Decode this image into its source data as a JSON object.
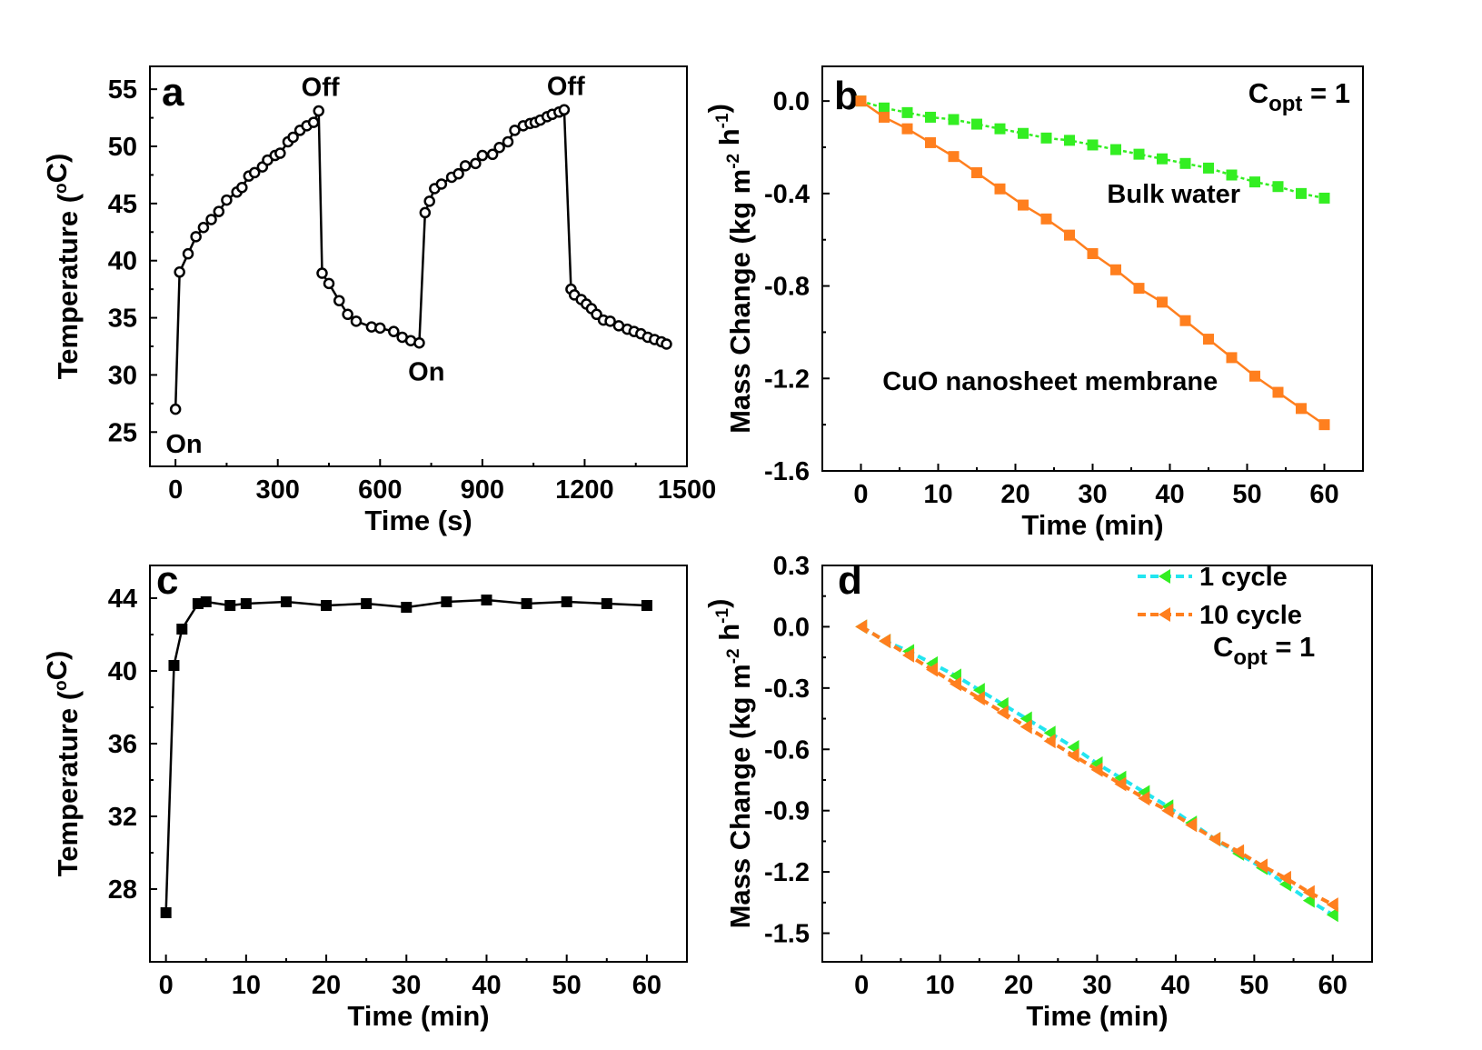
{
  "chart_data": [
    {
      "panel": "a",
      "type": "line",
      "xlabel": "Time (s)",
      "ylabel": "Temperature (°C)",
      "ylabel_parts": [
        "Temperature (",
        "o",
        "C)"
      ],
      "xlim": [
        -75,
        1500
      ],
      "ylim": [
        22,
        57
      ],
      "xticks": [
        0,
        300,
        600,
        900,
        1200,
        1500
      ],
      "yticks": [
        25,
        30,
        35,
        40,
        45,
        50,
        55
      ],
      "annotations": [
        {
          "text": "On",
          "x": 25,
          "y": 23.2
        },
        {
          "text": "Off",
          "x": 425,
          "y": 54.4
        },
        {
          "text": "On",
          "x": 736,
          "y": 29.5
        },
        {
          "text": "Off",
          "x": 1145,
          "y": 54.5
        }
      ],
      "series": [
        {
          "marker": "circle",
          "color": "#000000",
          "x": [
            0,
            12,
            37,
            60,
            82,
            105,
            127,
            150,
            180,
            195,
            215,
            232,
            255,
            270,
            292,
            307,
            330,
            345,
            365,
            385,
            405,
            420,
            430,
            450,
            480,
            505,
            530,
            575,
            600,
            640,
            665,
            690,
            715,
            732,
            745,
            760,
            780,
            810,
            830,
            850,
            880,
            900,
            930,
            950,
            975,
            995,
            1020,
            1040,
            1055,
            1070,
            1090,
            1105,
            1125,
            1140,
            1160,
            1170,
            1190,
            1205,
            1220,
            1235,
            1255,
            1275,
            1300,
            1325,
            1345,
            1365,
            1385,
            1405,
            1425,
            1440
          ],
          "y": [
            27,
            39,
            40.6,
            42.1,
            42.9,
            43.6,
            44.3,
            45.3,
            46,
            46.4,
            47.4,
            47.7,
            48.2,
            48.8,
            49.2,
            49.4,
            50.4,
            50.8,
            51.4,
            51.8,
            52.1,
            53.1,
            38.9,
            38,
            36.5,
            35.3,
            34.7,
            34.2,
            34.1,
            33.8,
            33.3,
            33,
            32.8,
            44.2,
            45.2,
            46.3,
            46.7,
            47.3,
            47.6,
            48.3,
            48.5,
            49.2,
            49.3,
            49.9,
            50.4,
            51.4,
            51.8,
            52,
            52.1,
            52.3,
            52.6,
            52.8,
            53,
            53.2,
            37.5,
            37,
            36.6,
            36.2,
            35.8,
            35.3,
            34.8,
            34.7,
            34.3,
            34,
            33.8,
            33.6,
            33.3,
            33.1,
            32.9,
            32.7
          ]
        }
      ]
    },
    {
      "panel": "b",
      "type": "line",
      "xlabel": "Time (min)",
      "ylabel": "Mass Change (kg m-2 h-1)",
      "ylabel_parts": [
        "Mass Change (kg m",
        "-2",
        " h",
        "-1",
        ")"
      ],
      "xlim": [
        -5,
        65
      ],
      "ylim": [
        -1.6,
        0.15
      ],
      "xticks": [
        0,
        10,
        20,
        30,
        40,
        50,
        60
      ],
      "yticks": [
        0.0,
        -0.4,
        -0.8,
        -1.2,
        -1.6
      ],
      "ytick_labels": [
        "0.0",
        "-0.4",
        "-0.8",
        "-1.2",
        "-1.6"
      ],
      "corner_label": {
        "base": "C",
        "sub": "opt",
        "rest": " = 1"
      },
      "annotations": [
        {
          "text": "Bulk water",
          "x": 40.5,
          "y": -0.44
        },
        {
          "text": "CuO nanosheet membrane",
          "x": 24.5,
          "y": -1.25
        }
      ],
      "series": [
        {
          "name": "Bulk water",
          "marker": "square",
          "color": "#33ee22",
          "dash": "4,3",
          "x": [
            0,
            3,
            6,
            9,
            12,
            15,
            18,
            21,
            24,
            27,
            30,
            33,
            36,
            39,
            42,
            45,
            48,
            51,
            54,
            57,
            60
          ],
          "y": [
            0,
            -0.03,
            -0.05,
            -0.07,
            -0.08,
            -0.1,
            -0.12,
            -0.14,
            -0.16,
            -0.17,
            -0.19,
            -0.21,
            -0.23,
            -0.25,
            -0.27,
            -0.29,
            -0.32,
            -0.35,
            -0.37,
            -0.4,
            -0.42
          ]
        },
        {
          "name": "CuO nanosheet membrane",
          "marker": "square",
          "color": "#ff7f1e",
          "dash": "none",
          "x": [
            0,
            3,
            6,
            9,
            12,
            15,
            18,
            21,
            24,
            27,
            30,
            33,
            36,
            39,
            42,
            45,
            48,
            51,
            54,
            57,
            60
          ],
          "y": [
            0,
            -0.07,
            -0.12,
            -0.18,
            -0.24,
            -0.31,
            -0.38,
            -0.45,
            -0.51,
            -0.58,
            -0.66,
            -0.73,
            -0.81,
            -0.87,
            -0.95,
            -1.03,
            -1.11,
            -1.19,
            -1.26,
            -1.33,
            -1.4
          ]
        }
      ]
    },
    {
      "panel": "c",
      "type": "line",
      "xlabel": "Time (min)",
      "ylabel": "Temperature (°C)",
      "ylabel_parts": [
        "Temperature (",
        "o",
        "C)"
      ],
      "xlim": [
        -2,
        65
      ],
      "ylim": [
        24,
        45.8
      ],
      "xticks": [
        0,
        10,
        20,
        30,
        40,
        50,
        60
      ],
      "yticks": [
        28,
        32,
        36,
        40,
        44
      ],
      "series": [
        {
          "marker": "square",
          "color": "#000000",
          "x": [
            0,
            1,
            2,
            4,
            5,
            8,
            10,
            15,
            20,
            25,
            30,
            35,
            40,
            45,
            50,
            55,
            60
          ],
          "y": [
            26.7,
            40.3,
            42.3,
            43.7,
            43.8,
            43.6,
            43.7,
            43.8,
            43.6,
            43.7,
            43.5,
            43.8,
            43.9,
            43.7,
            43.8,
            43.7,
            43.6
          ]
        }
      ]
    },
    {
      "panel": "d",
      "type": "line",
      "xlabel": "Time (min)",
      "ylabel": "Mass Change (kg m-2 h-1)",
      "ylabel_parts": [
        "Mass Change (kg m",
        "-2",
        " h",
        "-1",
        ")"
      ],
      "xlim": [
        -5,
        65
      ],
      "ylim": [
        -1.64,
        0.3
      ],
      "xticks": [
        0,
        10,
        20,
        30,
        40,
        50,
        60
      ],
      "yticks": [
        0.3,
        0.0,
        -0.3,
        -0.6,
        -0.9,
        -1.2,
        -1.5
      ],
      "ytick_labels": [
        "0.3",
        "0.0",
        "-0.3",
        "-0.6",
        "-0.9",
        "-1.2",
        "-1.5"
      ],
      "corner_label": {
        "base": "C",
        "sub": "opt",
        "rest": " = 1"
      },
      "legend_position": "top-right",
      "series": [
        {
          "name": "1 cycle",
          "marker": "triangle-left",
          "color": "#33ee22",
          "line_color": "#22e5f0",
          "dash": "9,5",
          "x": [
            0,
            3,
            6,
            9,
            12,
            15,
            18,
            21,
            24,
            27,
            30,
            33,
            36,
            39,
            42,
            45,
            48,
            51,
            54,
            57,
            60
          ],
          "y": [
            0,
            -0.07,
            -0.12,
            -0.18,
            -0.24,
            -0.31,
            -0.38,
            -0.45,
            -0.52,
            -0.59,
            -0.67,
            -0.74,
            -0.81,
            -0.88,
            -0.96,
            -1.04,
            -1.11,
            -1.18,
            -1.26,
            -1.34,
            -1.41
          ]
        },
        {
          "name": "10 cycle",
          "marker": "triangle-left",
          "color": "#ff7f1e",
          "line_color": "#ff7f1e",
          "dash": "9,5",
          "x": [
            0,
            3,
            6,
            9,
            12,
            15,
            18,
            21,
            24,
            27,
            30,
            33,
            36,
            39,
            42,
            45,
            48,
            51,
            54,
            57,
            60
          ],
          "y": [
            0,
            -0.07,
            -0.14,
            -0.21,
            -0.28,
            -0.35,
            -0.42,
            -0.49,
            -0.56,
            -0.63,
            -0.7,
            -0.77,
            -0.84,
            -0.9,
            -0.97,
            -1.04,
            -1.1,
            -1.17,
            -1.23,
            -1.3,
            -1.36
          ]
        }
      ]
    }
  ]
}
